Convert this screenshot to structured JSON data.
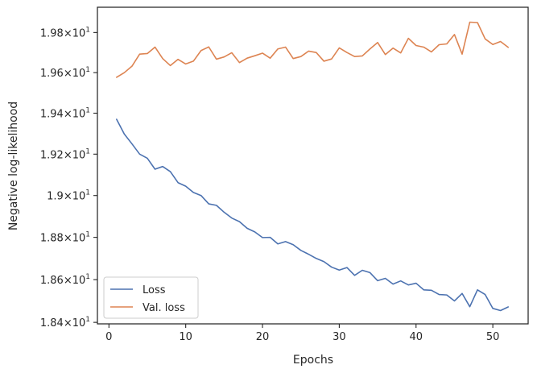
{
  "chart_data": {
    "type": "line",
    "xlabel": "Epochs",
    "ylabel": "Negative log-likelihood",
    "xlim": [
      -1.5,
      54.6
    ],
    "ylim": [
      18.393,
      19.927
    ],
    "y_scale": "log",
    "x_ticks": [
      0,
      10,
      20,
      30,
      40,
      50
    ],
    "x_tick_labels": [
      "0",
      "10",
      "20",
      "30",
      "40",
      "50"
    ],
    "y_ticks": [
      18.4,
      18.6,
      18.8,
      19.0,
      19.2,
      19.4,
      19.6,
      19.8
    ],
    "y_tick_labels": [
      {
        "mantissa": "1.84",
        "base": "10",
        "exp": "1"
      },
      {
        "mantissa": "1.86",
        "base": "10",
        "exp": "1"
      },
      {
        "mantissa": "1.88",
        "base": "10",
        "exp": "1"
      },
      {
        "mantissa": "1.9",
        "base": "10",
        "exp": "1"
      },
      {
        "mantissa": "1.92",
        "base": "10",
        "exp": "1"
      },
      {
        "mantissa": "1.94",
        "base": "10",
        "exp": "1"
      },
      {
        "mantissa": "1.96",
        "base": "10",
        "exp": "1"
      },
      {
        "mantissa": "1.98",
        "base": "10",
        "exp": "1"
      }
    ],
    "grid": false,
    "legend_position": "lower-left",
    "x": [
      1,
      2,
      3,
      4,
      5,
      6,
      7,
      8,
      9,
      10,
      11,
      12,
      13,
      14,
      15,
      16,
      17,
      18,
      19,
      20,
      21,
      22,
      23,
      24,
      25,
      26,
      27,
      28,
      29,
      30,
      31,
      32,
      33,
      34,
      35,
      36,
      37,
      38,
      39,
      40,
      41,
      42,
      43,
      44,
      45,
      46,
      47,
      48,
      49,
      50,
      51,
      52
    ],
    "series": [
      {
        "name": "Loss",
        "color": "#4c72b0",
        "values": [
          19.37,
          19.298,
          19.25,
          19.2,
          19.18,
          19.127,
          19.14,
          19.115,
          19.062,
          19.045,
          19.015,
          19.0,
          18.96,
          18.953,
          18.92,
          18.892,
          18.875,
          18.843,
          18.826,
          18.799,
          18.8,
          18.769,
          18.78,
          18.765,
          18.738,
          18.72,
          18.7,
          18.685,
          18.659,
          18.645,
          18.657,
          18.62,
          18.644,
          18.633,
          18.595,
          18.606,
          18.579,
          18.594,
          18.575,
          18.583,
          18.552,
          18.55,
          18.53,
          18.528,
          18.5,
          18.535,
          18.473,
          18.552,
          18.53,
          18.465,
          18.455,
          18.472
        ]
      },
      {
        "name": "Val. loss",
        "color": "#dd8452",
        "values": [
          19.577,
          19.6,
          19.632,
          19.692,
          19.695,
          19.727,
          19.67,
          19.635,
          19.666,
          19.643,
          19.657,
          19.71,
          19.728,
          19.667,
          19.678,
          19.699,
          19.65,
          19.672,
          19.684,
          19.697,
          19.672,
          19.718,
          19.727,
          19.67,
          19.68,
          19.707,
          19.7,
          19.657,
          19.668,
          19.723,
          19.7,
          19.68,
          19.683,
          19.718,
          19.75,
          19.69,
          19.722,
          19.698,
          19.771,
          19.735,
          19.727,
          19.703,
          19.739,
          19.743,
          19.79,
          19.692,
          19.852,
          19.85,
          19.768,
          19.74,
          19.755,
          19.726
        ]
      }
    ]
  }
}
